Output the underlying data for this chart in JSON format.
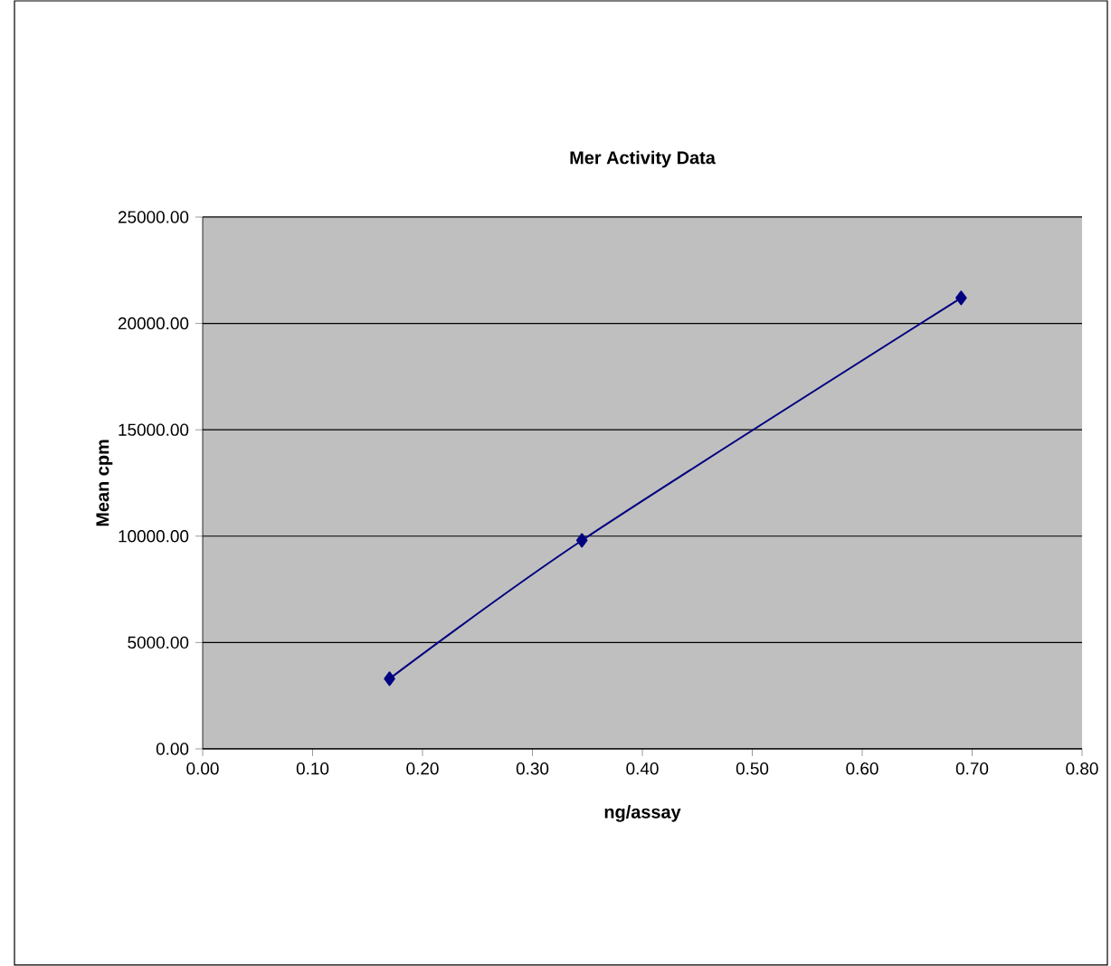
{
  "chart_data": {
    "type": "line",
    "title": "Mer Activity Data",
    "xlabel": "ng/assay",
    "ylabel": "Mean cpm",
    "x": [
      0.17,
      0.345,
      0.69
    ],
    "series": [
      {
        "color": "#000080",
        "values": [
          3300,
          9800,
          21200
        ]
      }
    ],
    "xlim": [
      0,
      0.8
    ],
    "ylim": [
      0,
      25000
    ],
    "xticks": [
      {
        "value": 0,
        "label": "0.00"
      },
      {
        "value": 0.1,
        "label": "0.10"
      },
      {
        "value": 0.2,
        "label": "0.20"
      },
      {
        "value": 0.3,
        "label": "0.30"
      },
      {
        "value": 0.4,
        "label": "0.40"
      },
      {
        "value": 0.5,
        "label": "0.50"
      },
      {
        "value": 0.6,
        "label": "0.60"
      },
      {
        "value": 0.7,
        "label": "0.70"
      },
      {
        "value": 0.8,
        "label": "0.80"
      }
    ],
    "yticks": [
      {
        "value": 0,
        "label": "0.00"
      },
      {
        "value": 5000,
        "label": "5000.00"
      },
      {
        "value": 10000,
        "label": "10000.00"
      },
      {
        "value": 15000,
        "label": "15000.00"
      },
      {
        "value": 20000,
        "label": "20000.00"
      },
      {
        "value": 25000,
        "label": "25000.00"
      }
    ],
    "grid": "y",
    "marker": "diamond",
    "line_style": "solid"
  }
}
